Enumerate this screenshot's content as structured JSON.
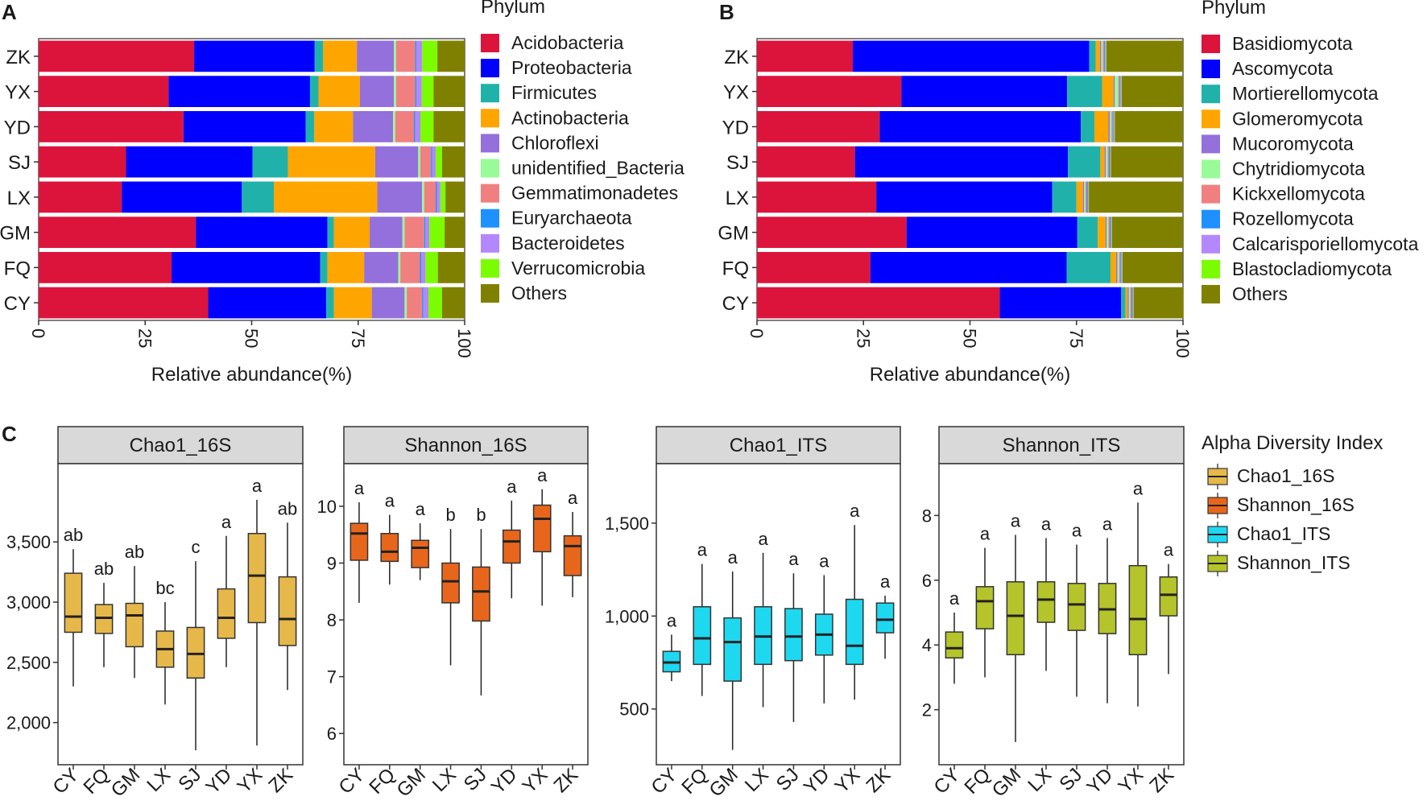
{
  "panels": {
    "a": "A",
    "b": "B",
    "c": "C"
  },
  "chart_data": [
    {
      "id": "A",
      "type": "bar",
      "orientation": "horizontal",
      "stacked": true,
      "title": "",
      "xlabel": "Relative abundance(%)",
      "ylabel": "",
      "xlim": [
        0,
        100
      ],
      "xticks": [
        "0",
        "25",
        "50",
        "75",
        "100"
      ],
      "legend_title": "Phylum",
      "categories": [
        "ZK",
        "YX",
        "YD",
        "SJ",
        "LX",
        "GM",
        "FQ",
        "CY"
      ],
      "series": [
        {
          "name": "Acidobacteria",
          "color": "#DC143C",
          "values": [
            36.5,
            30.5,
            34,
            20.5,
            19.5,
            36.9,
            31.2,
            39.8
          ]
        },
        {
          "name": "Proteobacteria",
          "color": "#0000FF",
          "values": [
            28.3,
            33.2,
            28.7,
            29.7,
            28.2,
            30.9,
            34.9,
            27.7
          ]
        },
        {
          "name": "Firmicutes",
          "color": "#20B2AA",
          "values": [
            2,
            2,
            2,
            8.3,
            7.5,
            1.5,
            1.7,
            1.8
          ]
        },
        {
          "name": "Actinobacteria",
          "color": "#FFA500",
          "values": [
            7.9,
            9.7,
            9.1,
            20.5,
            24.3,
            8.4,
            8.6,
            8.9
          ]
        },
        {
          "name": "Chloroflexi",
          "color": "#9370DB",
          "values": [
            8.7,
            8,
            9.4,
            10.1,
            10.5,
            7.7,
            8,
            7.7
          ]
        },
        {
          "name": "unidentified_Bacteria",
          "color": "#98FB98",
          "values": [
            0.5,
            0.5,
            0.5,
            0.5,
            0.5,
            0.5,
            0.5,
            0.5
          ]
        },
        {
          "name": "Gemmatimonadetes",
          "color": "#F08080",
          "values": [
            4.5,
            4.5,
            4.4,
            2.5,
            2.7,
            4.6,
            4.6,
            3.6
          ]
        },
        {
          "name": "Euryarchaeota",
          "color": "#1E90FF",
          "values": [
            0.3,
            0.3,
            0.3,
            0.3,
            0.3,
            0.3,
            0.3,
            0.3
          ]
        },
        {
          "name": "Bacteroidetes",
          "color": "#B388FF",
          "values": [
            1.3,
            1.2,
            1.2,
            0.8,
            0.8,
            0.9,
            1,
            1.2
          ]
        },
        {
          "name": "Verrucomicrobia",
          "color": "#7CFC00",
          "values": [
            3.6,
            2.8,
            3.1,
            1.5,
            1.2,
            3.6,
            2.9,
            3.2
          ]
        },
        {
          "name": "Others",
          "color": "#808000",
          "values": [
            6.4,
            7.3,
            7.3,
            5.3,
            4.5,
            4.7,
            6.3,
            5.3
          ]
        }
      ]
    },
    {
      "id": "B",
      "type": "bar",
      "orientation": "horizontal",
      "stacked": true,
      "title": "",
      "xlabel": "Relative abundance(%)",
      "ylabel": "",
      "xlim": [
        0,
        100
      ],
      "xticks": [
        "0",
        "25",
        "50",
        "75",
        "100"
      ],
      "legend_title": "Phylum",
      "categories": [
        "ZK",
        "YX",
        "YD",
        "SJ",
        "LX",
        "GM",
        "FQ",
        "CY"
      ],
      "series": [
        {
          "name": "Basidiomycota",
          "color": "#DC143C",
          "values": [
            22.5,
            33.9,
            28.8,
            23,
            28,
            35.1,
            26.6,
            57
          ]
        },
        {
          "name": "Ascomycota",
          "color": "#0000FF",
          "values": [
            55.5,
            38.9,
            47.2,
            50,
            41.3,
            40.1,
            46.1,
            28.5
          ]
        },
        {
          "name": "Mortierellomycota",
          "color": "#20B2AA",
          "values": [
            1.5,
            8.2,
            3.2,
            7.6,
            5.7,
            4.8,
            10.3,
            1
          ]
        },
        {
          "name": "Glomeromycota",
          "color": "#FFA500",
          "values": [
            1,
            2.7,
            3.3,
            1,
            1.5,
            1.8,
            1.3,
            0.5
          ]
        },
        {
          "name": "Mucoromycota",
          "color": "#9370DB",
          "values": [
            0.3,
            0.3,
            0.3,
            0.3,
            0.3,
            0.3,
            0.3,
            0.3
          ]
        },
        {
          "name": "Chytridiomycota",
          "color": "#98FB98",
          "values": [
            0.4,
            0.8,
            0.4,
            0.4,
            0.3,
            0.4,
            0.4,
            0.3
          ]
        },
        {
          "name": "Kickxellomycota",
          "color": "#F08080",
          "values": [
            0.3,
            0.3,
            0.3,
            0.3,
            0.3,
            0.3,
            0.3,
            0.3
          ]
        },
        {
          "name": "Rozellomycota",
          "color": "#1E90FF",
          "values": [
            0.2,
            0.2,
            0.2,
            0.2,
            0.2,
            0.2,
            0.2,
            0.2
          ]
        },
        {
          "name": "Calcarisporiellomycota",
          "color": "#B388FF",
          "values": [
            0.2,
            0.2,
            0.2,
            0.2,
            0.2,
            0.2,
            0.2,
            0.2
          ]
        },
        {
          "name": "Blastocladiomycota",
          "color": "#7CFC00",
          "values": [
            0.1,
            0.1,
            0.1,
            0.1,
            0.1,
            0.1,
            0.1,
            0.1
          ]
        },
        {
          "name": "Others",
          "color": "#808000",
          "values": [
            18,
            14.4,
            16,
            16.9,
            22.1,
            16.7,
            14.1,
            11.7
          ]
        }
      ]
    },
    {
      "id": "C",
      "type": "box",
      "legend_title": "Alpha Diversity Index",
      "categories": [
        "CY",
        "FQ",
        "GM",
        "LX",
        "SJ",
        "YD",
        "YX",
        "ZK"
      ],
      "facets": [
        {
          "name": "Chao1_16S",
          "color": "#E6B84A",
          "ylim": [
            1650,
            4150
          ],
          "yticks": [
            2000,
            2500,
            3000,
            3500
          ],
          "ytick_labels": [
            "2,000",
            "2,500",
            "3,000",
            "3,500"
          ],
          "boxes": [
            {
              "min": 2300,
              "q1": 2750,
              "median": 2880,
              "q3": 3240,
              "max": 3440,
              "label": "ab"
            },
            {
              "min": 2460,
              "q1": 2740,
              "median": 2870,
              "q3": 2980,
              "max": 3160,
              "label": "ab"
            },
            {
              "min": 2370,
              "q1": 2630,
              "median": 2890,
              "q3": 2990,
              "max": 3300,
              "label": "ab"
            },
            {
              "min": 2150,
              "q1": 2460,
              "median": 2610,
              "q3": 2760,
              "max": 3000,
              "label": "bc"
            },
            {
              "min": 1770,
              "q1": 2370,
              "median": 2570,
              "q3": 2790,
              "max": 3340,
              "label": "c"
            },
            {
              "min": 2460,
              "q1": 2700,
              "median": 2870,
              "q3": 3110,
              "max": 3550,
              "label": "a"
            },
            {
              "min": 1810,
              "q1": 2830,
              "median": 3220,
              "q3": 3570,
              "max": 3850,
              "label": "a"
            },
            {
              "min": 2270,
              "q1": 2640,
              "median": 2860,
              "q3": 3210,
              "max": 3660,
              "label": "ab"
            }
          ]
        },
        {
          "name": "Shannon_16S",
          "color": "#E8661C",
          "ylim": [
            5.45,
            10.75
          ],
          "yticks": [
            6,
            7,
            8,
            9,
            10
          ],
          "ytick_labels": [
            "6",
            "7",
            "8",
            "9",
            "10"
          ],
          "boxes": [
            {
              "min": 8.3,
              "q1": 9.05,
              "median": 9.52,
              "q3": 9.7,
              "max": 10.07,
              "label": "a"
            },
            {
              "min": 8.62,
              "q1": 9.03,
              "median": 9.2,
              "q3": 9.52,
              "max": 9.85,
              "label": "a"
            },
            {
              "min": 8.7,
              "q1": 8.92,
              "median": 9.27,
              "q3": 9.4,
              "max": 9.7,
              "label": "a"
            },
            {
              "min": 7.2,
              "q1": 8.3,
              "median": 8.68,
              "q3": 9,
              "max": 9.6,
              "label": "b"
            },
            {
              "min": 6.67,
              "q1": 7.98,
              "median": 8.5,
              "q3": 8.93,
              "max": 9.6,
              "label": "b"
            },
            {
              "min": 8.38,
              "q1": 9,
              "median": 9.38,
              "q3": 9.58,
              "max": 10.1,
              "label": "a"
            },
            {
              "min": 8.25,
              "q1": 9.2,
              "median": 9.78,
              "q3": 10.02,
              "max": 10.3,
              "label": "a"
            },
            {
              "min": 8.4,
              "q1": 8.78,
              "median": 9.3,
              "q3": 9.48,
              "max": 9.9,
              "label": "a"
            }
          ]
        },
        {
          "name": "Chao1_ITS",
          "color": "#1ED8F0",
          "ylim": [
            200,
            1820
          ],
          "yticks": [
            500,
            1000,
            1500
          ],
          "ytick_labels": [
            "500",
            "1,000",
            "1,500"
          ],
          "boxes": [
            {
              "min": 650,
              "q1": 700,
              "median": 750,
              "q3": 810,
              "max": 900,
              "label": "a"
            },
            {
              "min": 570,
              "q1": 740,
              "median": 880,
              "q3": 1050,
              "max": 1280,
              "label": "a"
            },
            {
              "min": 280,
              "q1": 650,
              "median": 860,
              "q3": 990,
              "max": 1240,
              "label": "a"
            },
            {
              "min": 510,
              "q1": 740,
              "median": 890,
              "q3": 1050,
              "max": 1340,
              "label": "a"
            },
            {
              "min": 430,
              "q1": 760,
              "median": 890,
              "q3": 1040,
              "max": 1230,
              "label": "a"
            },
            {
              "min": 530,
              "q1": 790,
              "median": 900,
              "q3": 1010,
              "max": 1220,
              "label": "a"
            },
            {
              "min": 550,
              "q1": 740,
              "median": 840,
              "q3": 1090,
              "max": 1490,
              "label": "a"
            },
            {
              "min": 770,
              "q1": 910,
              "median": 980,
              "q3": 1070,
              "max": 1110,
              "label": "a"
            }
          ]
        },
        {
          "name": "Shannon_ITS",
          "color": "#B4C42A",
          "ylim": [
            0.3,
            9.6
          ],
          "yticks": [
            2,
            4,
            6,
            8
          ],
          "ytick_labels": [
            "2",
            "4",
            "6",
            "8"
          ],
          "boxes": [
            {
              "min": 2.8,
              "q1": 3.6,
              "median": 3.9,
              "q3": 4.4,
              "max": 5,
              "label": "a"
            },
            {
              "min": 3,
              "q1": 4.5,
              "median": 5.35,
              "q3": 5.8,
              "max": 7,
              "label": "a"
            },
            {
              "min": 1,
              "q1": 3.7,
              "median": 4.9,
              "q3": 5.95,
              "max": 7.4,
              "label": "a"
            },
            {
              "min": 3.2,
              "q1": 4.7,
              "median": 5.4,
              "q3": 5.95,
              "max": 7.3,
              "label": "a"
            },
            {
              "min": 2.4,
              "q1": 4.45,
              "median": 5.25,
              "q3": 5.9,
              "max": 7.1,
              "label": "a"
            },
            {
              "min": 2.2,
              "q1": 4.35,
              "median": 5.1,
              "q3": 5.9,
              "max": 7.3,
              "label": "a"
            },
            {
              "min": 2.1,
              "q1": 3.7,
              "median": 4.8,
              "q3": 6.45,
              "max": 8.4,
              "label": "a"
            },
            {
              "min": 3.1,
              "q1": 4.9,
              "median": 5.55,
              "q3": 6.1,
              "max": 6.5,
              "label": "a"
            }
          ]
        }
      ]
    }
  ]
}
